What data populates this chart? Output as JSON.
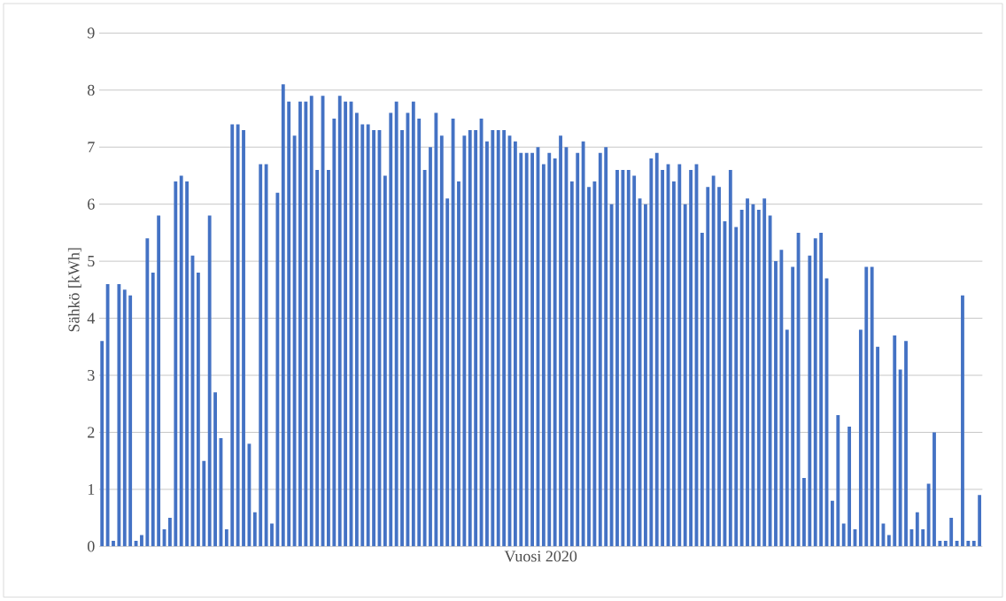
{
  "chart_data": {
    "type": "bar",
    "xlabel": "Vuosi 2020",
    "ylabel": "Sähkö [kWh]",
    "color": "#4472c4",
    "ylim": [
      0,
      9
    ],
    "yticks": [
      0,
      1,
      2,
      3,
      4,
      5,
      6,
      7,
      8,
      9
    ],
    "grid": "y",
    "categories": [
      null,
      null,
      null,
      null,
      null,
      null,
      null,
      null,
      null,
      null,
      null,
      null,
      null,
      null,
      null,
      null,
      null,
      null,
      null,
      null,
      null,
      null,
      null,
      null,
      null,
      null,
      null,
      null,
      null,
      null,
      null,
      null,
      null,
      null,
      null,
      null,
      null,
      null,
      null,
      null,
      null,
      null,
      null,
      null,
      null,
      null,
      null,
      null,
      null,
      null,
      null,
      null,
      null,
      null,
      null,
      null,
      null,
      null,
      null,
      null,
      null,
      null,
      null,
      null,
      null,
      null,
      null,
      null,
      null,
      null,
      null,
      null,
      null,
      null,
      null,
      null,
      null,
      null,
      null,
      null,
      null,
      null,
      null,
      null,
      null,
      null,
      null,
      null,
      null,
      null,
      null,
      null,
      null,
      null,
      null,
      null,
      null,
      null,
      null,
      null,
      null,
      null,
      null,
      null,
      null,
      null,
      null,
      null,
      null,
      null,
      null,
      null,
      null,
      null,
      null,
      null,
      null,
      null,
      null,
      null,
      null,
      null,
      null,
      null,
      null,
      null,
      null,
      null,
      null,
      null,
      null,
      null,
      null,
      null,
      null,
      null,
      null,
      null,
      null,
      null,
      null,
      null,
      null,
      null,
      null,
      null,
      null,
      null,
      null,
      null,
      null,
      null,
      null,
      null,
      null,
      null
    ],
    "values": [
      3.6,
      4.6,
      0.1,
      4.6,
      4.5,
      4.4,
      0.1,
      0.2,
      5.4,
      4.8,
      5.8,
      0.3,
      0.5,
      6.4,
      6.5,
      6.4,
      5.1,
      4.8,
      1.5,
      5.8,
      2.7,
      1.9,
      0.3,
      7.4,
      7.4,
      7.3,
      1.8,
      0.6,
      6.7,
      6.7,
      0.4,
      6.2,
      8.1,
      7.8,
      7.2,
      7.8,
      7.8,
      7.9,
      6.6,
      7.9,
      6.6,
      7.5,
      7.9,
      7.8,
      7.8,
      7.6,
      7.4,
      7.4,
      7.3,
      7.3,
      6.5,
      7.6,
      7.8,
      7.3,
      7.6,
      7.8,
      7.5,
      6.6,
      7.0,
      7.6,
      7.2,
      6.1,
      7.5,
      6.4,
      7.2,
      7.3,
      7.3,
      7.5,
      7.1,
      7.3,
      7.3,
      7.3,
      7.2,
      7.1,
      6.9,
      6.9,
      6.9,
      7.0,
      6.7,
      6.9,
      6.8,
      7.2,
      7.0,
      6.4,
      6.9,
      7.1,
      6.3,
      6.4,
      6.9,
      7.0,
      6.0,
      6.6,
      6.6,
      6.6,
      6.5,
      6.1,
      6.0,
      6.8,
      6.9,
      6.6,
      6.7,
      6.4,
      6.7,
      6.0,
      6.6,
      6.7,
      5.5,
      6.3,
      6.5,
      6.3,
      5.7,
      6.6,
      5.6,
      5.9,
      6.1,
      6.0,
      5.9,
      6.1,
      5.8,
      5.0,
      5.2,
      3.8,
      4.9,
      5.5,
      1.2,
      5.1,
      5.4,
      5.5,
      4.7,
      0.8,
      2.3,
      0.4,
      2.1,
      0.3,
      3.8,
      4.9,
      4.9,
      3.5,
      0.4,
      0.2,
      3.7,
      3.1,
      3.6,
      0.3,
      0.6,
      0.3,
      1.1,
      2.0,
      0.1,
      0.1,
      0.5,
      0.1,
      4.4,
      0.1,
      0.1,
      0.9
    ]
  }
}
